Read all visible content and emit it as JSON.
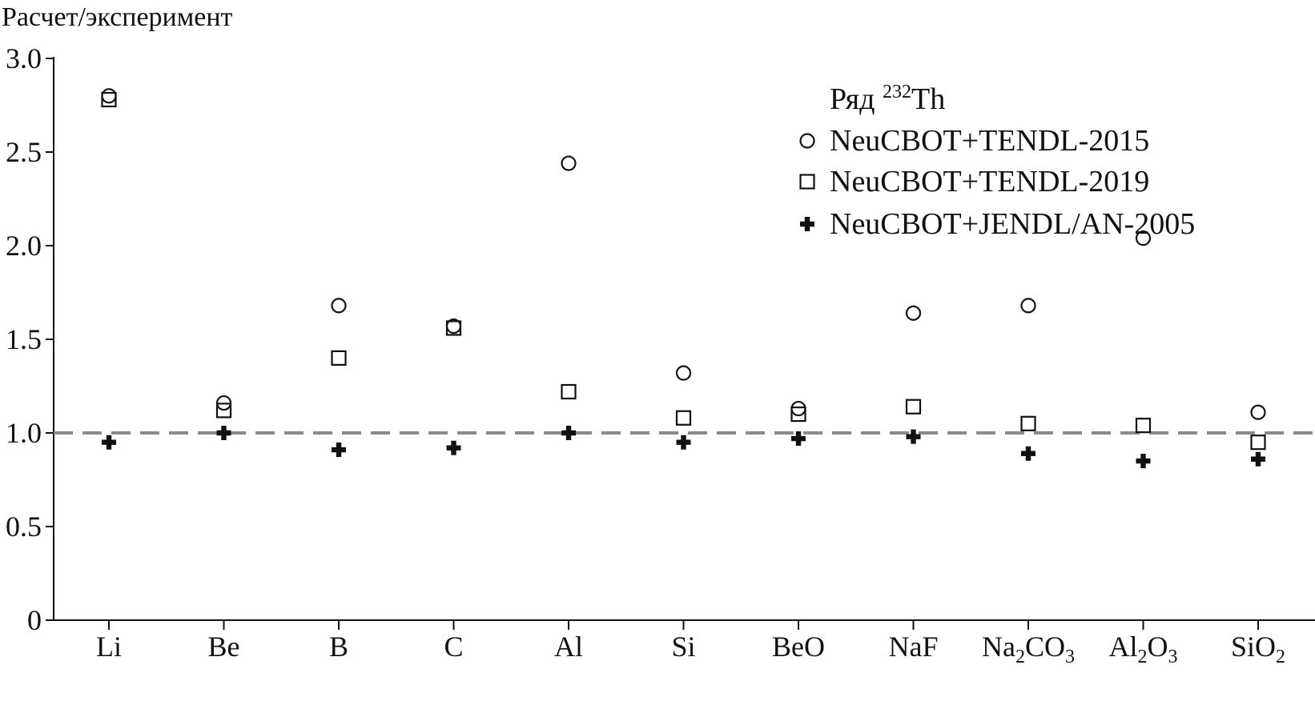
{
  "chart_data": {
    "type": "scatter",
    "ylabel": "Расчет/эксперимент",
    "ylim": [
      0,
      3.0
    ],
    "yticks": [
      "0",
      "0.5",
      "1.0",
      "1.5",
      "2.0",
      "2.5",
      "3.0"
    ],
    "yticks_values": [
      0,
      0.5,
      1.0,
      1.5,
      2.0,
      2.5,
      3.0
    ],
    "categories": [
      {
        "base": "Li",
        "parts": [
          {
            "t": "Li",
            "sub": false
          }
        ]
      },
      {
        "base": "Be",
        "parts": [
          {
            "t": "Be",
            "sub": false
          }
        ]
      },
      {
        "base": "B",
        "parts": [
          {
            "t": "B",
            "sub": false
          }
        ]
      },
      {
        "base": "C",
        "parts": [
          {
            "t": "C",
            "sub": false
          }
        ]
      },
      {
        "base": "Al",
        "parts": [
          {
            "t": "Al",
            "sub": false
          }
        ]
      },
      {
        "base": "Si",
        "parts": [
          {
            "t": "Si",
            "sub": false
          }
        ]
      },
      {
        "base": "BeO",
        "parts": [
          {
            "t": "BeO",
            "sub": false
          }
        ]
      },
      {
        "base": "NaF",
        "parts": [
          {
            "t": "NaF",
            "sub": false
          }
        ]
      },
      {
        "base": "Na2CO3",
        "parts": [
          {
            "t": "Na",
            "sub": false
          },
          {
            "t": "2",
            "sub": true
          },
          {
            "t": "CO",
            "sub": false
          },
          {
            "t": "3",
            "sub": true
          }
        ]
      },
      {
        "base": "Al2O3",
        "parts": [
          {
            "t": "Al",
            "sub": false
          },
          {
            "t": "2",
            "sub": true
          },
          {
            "t": "O",
            "sub": false
          },
          {
            "t": "3",
            "sub": true
          }
        ]
      },
      {
        "base": "SiO2",
        "parts": [
          {
            "t": "SiO",
            "sub": false
          },
          {
            "t": "2",
            "sub": true
          }
        ]
      }
    ],
    "reference_line": {
      "y": 1.0,
      "style": "dashed",
      "color": "#8a8a8a"
    },
    "legend": {
      "title_prefix": "Ряд ",
      "title_sup": "232",
      "title_suffix": "Th",
      "placement": "top-right"
    },
    "series": [
      {
        "name": "NeuCBOT+TENDL-2015",
        "marker": "circle",
        "values": [
          2.8,
          1.16,
          1.68,
          1.57,
          2.44,
          1.32,
          1.13,
          1.64,
          1.68,
          2.04,
          1.11
        ]
      },
      {
        "name": "NeuCBOT+TENDL-2019",
        "marker": "square",
        "values": [
          2.78,
          1.12,
          1.4,
          1.56,
          1.22,
          1.08,
          1.1,
          1.14,
          1.05,
          1.04,
          0.95
        ]
      },
      {
        "name": "NeuCBOT+JENDL/AN-2005",
        "marker": "plus",
        "values": [
          0.95,
          1.0,
          0.91,
          0.92,
          1.0,
          0.95,
          0.97,
          0.98,
          0.89,
          0.85,
          0.86
        ]
      }
    ],
    "colors": {
      "axis": "#111111",
      "marker": "#111111",
      "reference": "#8a8a8a"
    }
  }
}
